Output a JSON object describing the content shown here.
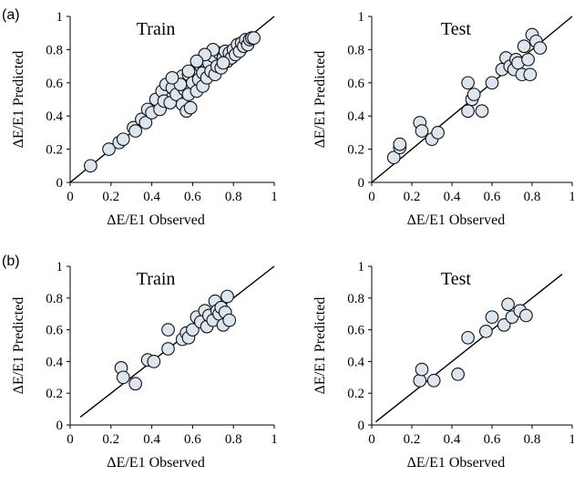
{
  "panel_labels": [
    "(a)",
    "(b)"
  ],
  "chart_data": [
    {
      "type": "scatter",
      "panel": "(a)",
      "title": "Train",
      "xlabel": "ΔE/E1  Observed",
      "ylabel": "ΔE/E1  Predicted",
      "xlim": [
        0,
        1
      ],
      "ylim": [
        0,
        1
      ],
      "xticks": [
        "0",
        "0.2",
        "0.4",
        "0.6",
        "0.8",
        "1"
      ],
      "yticks": [
        "0",
        "0.2",
        "0.4",
        "0.6",
        "0.8",
        "1"
      ],
      "fit_line": [
        [
          0,
          0
        ],
        [
          1,
          1
        ]
      ],
      "points": [
        [
          0.1,
          0.1
        ],
        [
          0.19,
          0.2
        ],
        [
          0.24,
          0.24
        ],
        [
          0.26,
          0.26
        ],
        [
          0.31,
          0.33
        ],
        [
          0.32,
          0.31
        ],
        [
          0.35,
          0.38
        ],
        [
          0.37,
          0.36
        ],
        [
          0.38,
          0.44
        ],
        [
          0.4,
          0.42
        ],
        [
          0.42,
          0.5
        ],
        [
          0.44,
          0.44
        ],
        [
          0.45,
          0.55
        ],
        [
          0.46,
          0.49
        ],
        [
          0.47,
          0.59
        ],
        [
          0.49,
          0.48
        ],
        [
          0.5,
          0.57
        ],
        [
          0.52,
          0.53
        ],
        [
          0.53,
          0.62
        ],
        [
          0.55,
          0.64
        ],
        [
          0.55,
          0.47
        ],
        [
          0.56,
          0.56
        ],
        [
          0.57,
          0.43
        ],
        [
          0.58,
          0.65
        ],
        [
          0.58,
          0.53
        ],
        [
          0.59,
          0.45
        ],
        [
          0.6,
          0.6
        ],
        [
          0.61,
          0.68
        ],
        [
          0.62,
          0.55
        ],
        [
          0.63,
          0.62
        ],
        [
          0.64,
          0.7
        ],
        [
          0.65,
          0.58
        ],
        [
          0.65,
          0.66
        ],
        [
          0.66,
          0.73
        ],
        [
          0.67,
          0.63
        ],
        [
          0.68,
          0.72
        ],
        [
          0.69,
          0.67
        ],
        [
          0.7,
          0.76
        ],
        [
          0.71,
          0.65
        ],
        [
          0.72,
          0.7
        ],
        [
          0.73,
          0.78
        ],
        [
          0.74,
          0.69
        ],
        [
          0.75,
          0.75
        ],
        [
          0.76,
          0.79
        ],
        [
          0.77,
          0.73
        ],
        [
          0.78,
          0.78
        ],
        [
          0.79,
          0.75
        ],
        [
          0.8,
          0.8
        ],
        [
          0.81,
          0.77
        ],
        [
          0.82,
          0.83
        ],
        [
          0.83,
          0.79
        ],
        [
          0.84,
          0.84
        ],
        [
          0.85,
          0.82
        ],
        [
          0.86,
          0.86
        ],
        [
          0.87,
          0.83
        ],
        [
          0.88,
          0.86
        ],
        [
          0.89,
          0.87
        ],
        [
          0.9,
          0.87
        ],
        [
          0.75,
          0.72
        ],
        [
          0.7,
          0.8
        ],
        [
          0.66,
          0.77
        ],
        [
          0.62,
          0.73
        ],
        [
          0.58,
          0.67
        ],
        [
          0.54,
          0.59
        ],
        [
          0.5,
          0.63
        ]
      ]
    },
    {
      "type": "scatter",
      "panel": "(a)",
      "title": "Test",
      "xlabel": "ΔE/E1  Observed",
      "ylabel": "ΔE/E1  Predicted",
      "xlim": [
        0,
        1
      ],
      "ylim": [
        0,
        1
      ],
      "xticks": [
        "0",
        "0.2",
        "0.4",
        "0.6",
        "0.8",
        "1"
      ],
      "yticks": [
        "0",
        "0.2",
        "0.4",
        "0.6",
        "0.8",
        "1"
      ],
      "fit_line": [
        [
          0,
          0
        ],
        [
          1,
          1
        ]
      ],
      "points": [
        [
          0.11,
          0.15
        ],
        [
          0.14,
          0.21
        ],
        [
          0.14,
          0.23
        ],
        [
          0.24,
          0.36
        ],
        [
          0.25,
          0.31
        ],
        [
          0.3,
          0.26
        ],
        [
          0.33,
          0.3
        ],
        [
          0.48,
          0.6
        ],
        [
          0.48,
          0.43
        ],
        [
          0.5,
          0.5
        ],
        [
          0.51,
          0.53
        ],
        [
          0.55,
          0.43
        ],
        [
          0.6,
          0.6
        ],
        [
          0.65,
          0.68
        ],
        [
          0.67,
          0.75
        ],
        [
          0.69,
          0.7
        ],
        [
          0.71,
          0.68
        ],
        [
          0.72,
          0.74
        ],
        [
          0.73,
          0.72
        ],
        [
          0.75,
          0.65
        ],
        [
          0.76,
          0.82
        ],
        [
          0.78,
          0.74
        ],
        [
          0.79,
          0.65
        ],
        [
          0.8,
          0.89
        ],
        [
          0.82,
          0.85
        ],
        [
          0.84,
          0.81
        ]
      ]
    },
    {
      "type": "scatter",
      "panel": "(b)",
      "title": "Train",
      "xlabel": "ΔE/E1  Observed",
      "ylabel": "ΔE/E1  Predicted",
      "xlim": [
        0,
        1
      ],
      "ylim": [
        0,
        1
      ],
      "xticks": [
        "0",
        "0.2",
        "0.4",
        "0.6",
        "0.8",
        "1"
      ],
      "yticks": [
        "0",
        "0.2",
        "0.4",
        "0.6",
        "0.8",
        "1"
      ],
      "fit_line": [
        [
          0.05,
          0.05
        ],
        [
          1,
          1
        ]
      ],
      "points": [
        [
          0.25,
          0.36
        ],
        [
          0.26,
          0.3
        ],
        [
          0.32,
          0.26
        ],
        [
          0.38,
          0.41
        ],
        [
          0.41,
          0.4
        ],
        [
          0.48,
          0.6
        ],
        [
          0.48,
          0.48
        ],
        [
          0.55,
          0.54
        ],
        [
          0.57,
          0.58
        ],
        [
          0.58,
          0.55
        ],
        [
          0.6,
          0.6
        ],
        [
          0.62,
          0.68
        ],
        [
          0.64,
          0.65
        ],
        [
          0.66,
          0.72
        ],
        [
          0.67,
          0.62
        ],
        [
          0.68,
          0.69
        ],
        [
          0.7,
          0.66
        ],
        [
          0.71,
          0.78
        ],
        [
          0.72,
          0.72
        ],
        [
          0.73,
          0.7
        ],
        [
          0.74,
          0.74
        ],
        [
          0.75,
          0.63
        ],
        [
          0.76,
          0.71
        ],
        [
          0.77,
          0.81
        ],
        [
          0.78,
          0.66
        ]
      ]
    },
    {
      "type": "scatter",
      "panel": "(b)",
      "title": "Test",
      "xlabel": "ΔE/E1  Observed",
      "ylabel": "ΔE/E1  Predicted",
      "xlim": [
        0,
        1
      ],
      "ylim": [
        0,
        1
      ],
      "xticks": [
        "0",
        "0.2",
        "0.4",
        "0.6",
        "0.8",
        "1"
      ],
      "yticks": [
        "0",
        "0.2",
        "0.4",
        "0.6",
        "0.8",
        "1"
      ],
      "fit_line": [
        [
          0.02,
          0.02
        ],
        [
          0.95,
          0.95
        ]
      ],
      "points": [
        [
          0.24,
          0.28
        ],
        [
          0.25,
          0.35
        ],
        [
          0.31,
          0.28
        ],
        [
          0.43,
          0.32
        ],
        [
          0.48,
          0.55
        ],
        [
          0.57,
          0.59
        ],
        [
          0.6,
          0.68
        ],
        [
          0.66,
          0.63
        ],
        [
          0.68,
          0.76
        ],
        [
          0.7,
          0.68
        ],
        [
          0.74,
          0.72
        ],
        [
          0.77,
          0.69
        ]
      ]
    }
  ]
}
